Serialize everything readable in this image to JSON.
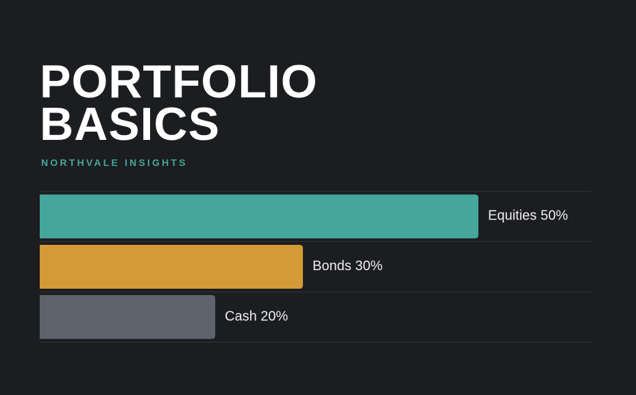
{
  "chart_data": {
    "type": "bar",
    "orientation": "horizontal",
    "title": "PORTFOLIO BASICS",
    "subtitle": "NORTHVALE INSIGHTS",
    "categories": [
      "Equities",
      "Bonds",
      "Cash"
    ],
    "values": [
      50,
      30,
      20
    ],
    "value_labels": [
      "50%",
      "30%",
      "20%"
    ],
    "colors": [
      "#45a79b",
      "#d39a35",
      "#5e636d"
    ]
  }
}
